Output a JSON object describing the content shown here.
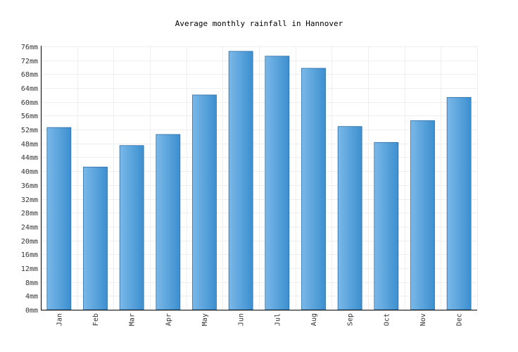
{
  "chart_data": {
    "type": "bar",
    "title": "Average monthly rainfall in Hannover",
    "categories": [
      "Jan",
      "Feb",
      "Mar",
      "Apr",
      "May",
      "Jun",
      "Jul",
      "Aug",
      "Sep",
      "Oct",
      "Nov",
      "Dec"
    ],
    "values": [
      52.6,
      41.2,
      47.4,
      50.6,
      62.0,
      74.6,
      73.2,
      69.7,
      52.9,
      48.3,
      54.6,
      61.3
    ],
    "unit": "mm",
    "xlabel": "",
    "ylabel": "",
    "ylim": [
      0,
      76
    ],
    "ytick_step": 4,
    "grid": true,
    "legend": "none",
    "bar_color": "#4a9ad8"
  }
}
